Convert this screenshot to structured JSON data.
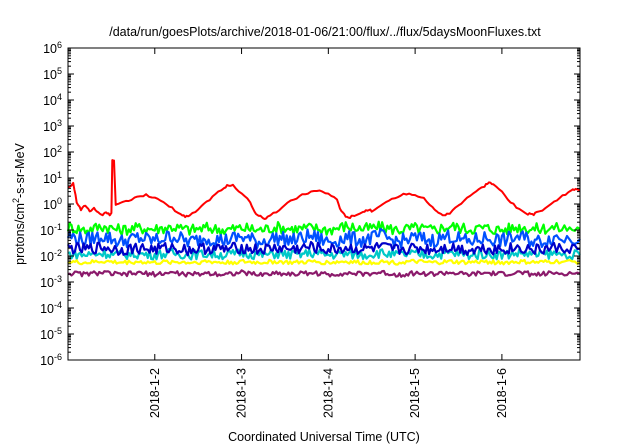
{
  "chart_data": {
    "type": "line",
    "title": "/data/run/goesPlots/archive/2018-01-06/21:00/flux/../flux/5daysMoonFluxes.txt",
    "xlabel": "Coordinated Universal Time (UTC)",
    "ylabel": "protons/cm2-s-sr-MeV",
    "ylabel_parts": {
      "pre": "protons/cm",
      "sup": "2",
      "post": "-s-sr-MeV"
    },
    "yscale": "log",
    "ylim": [
      1e-06,
      1000000.0
    ],
    "xlim": [
      1.0,
      6.9
    ],
    "x_ticks": [
      {
        "x": 2,
        "label": "2018-1-2"
      },
      {
        "x": 3,
        "label": "2018-1-3"
      },
      {
        "x": 4,
        "label": "2018-1-4"
      },
      {
        "x": 5,
        "label": "2018-1-5"
      },
      {
        "x": 6,
        "label": "2018-1-6"
      }
    ],
    "y_ticks": [
      {
        "exp": -6,
        "base": "10",
        "sup": "-6"
      },
      {
        "exp": -5,
        "base": "10",
        "sup": "-5"
      },
      {
        "exp": -4,
        "base": "10",
        "sup": "-4"
      },
      {
        "exp": -3,
        "base": "10",
        "sup": "-3"
      },
      {
        "exp": -2,
        "base": "10",
        "sup": "-2"
      },
      {
        "exp": -1,
        "base": "10",
        "sup": "-1"
      },
      {
        "exp": 0,
        "base": "10",
        "sup": "0"
      },
      {
        "exp": 1,
        "base": "10",
        "sup": "1"
      },
      {
        "exp": 2,
        "base": "10",
        "sup": "2"
      },
      {
        "exp": 3,
        "base": "10",
        "sup": "3"
      },
      {
        "exp": 4,
        "base": "10",
        "sup": "4"
      },
      {
        "exp": 5,
        "base": "10",
        "sup": "5"
      },
      {
        "exp": 6,
        "base": "10",
        "sup": "6"
      }
    ],
    "grid": false,
    "legend": "none",
    "series": [
      {
        "color": "#ff0000",
        "points": [
          [
            1.0,
            4.0
          ],
          [
            1.06,
            6.5
          ],
          [
            1.1,
            1.2
          ],
          [
            1.15,
            0.6
          ],
          [
            1.2,
            0.9
          ],
          [
            1.25,
            0.55
          ],
          [
            1.3,
            0.7
          ],
          [
            1.35,
            0.45
          ],
          [
            1.4,
            0.4
          ],
          [
            1.44,
            0.45
          ],
          [
            1.48,
            0.38
          ],
          [
            1.5,
            0.42
          ],
          [
            1.51,
            45
          ],
          [
            1.53,
            45
          ],
          [
            1.55,
            0.9
          ],
          [
            1.6,
            1.0
          ],
          [
            1.7,
            1.4
          ],
          [
            1.8,
            2.0
          ],
          [
            1.9,
            2.2
          ],
          [
            2.0,
            1.8
          ],
          [
            2.1,
            1.1
          ],
          [
            2.2,
            0.7
          ],
          [
            2.3,
            0.4
          ],
          [
            2.35,
            0.32
          ],
          [
            2.4,
            0.35
          ],
          [
            2.5,
            0.6
          ],
          [
            2.6,
            1.2
          ],
          [
            2.7,
            2.5
          ],
          [
            2.8,
            4.0
          ],
          [
            2.85,
            5.5
          ],
          [
            2.9,
            5.0
          ],
          [
            3.0,
            2.5
          ],
          [
            3.1,
            1.2
          ],
          [
            3.15,
            0.5
          ],
          [
            3.2,
            0.35
          ],
          [
            3.25,
            0.28
          ],
          [
            3.3,
            0.3
          ],
          [
            3.4,
            0.5
          ],
          [
            3.5,
            0.9
          ],
          [
            3.6,
            1.5
          ],
          [
            3.7,
            2.2
          ],
          [
            3.8,
            3.0
          ],
          [
            3.9,
            3.2
          ],
          [
            4.0,
            2.5
          ],
          [
            4.1,
            1.5
          ],
          [
            4.15,
            0.5
          ],
          [
            4.2,
            0.35
          ],
          [
            4.25,
            0.3
          ],
          [
            4.3,
            0.38
          ],
          [
            4.4,
            0.5
          ],
          [
            4.45,
            0.6
          ],
          [
            4.5,
            0.55
          ],
          [
            4.6,
            0.8
          ],
          [
            4.7,
            1.3
          ],
          [
            4.8,
            2.0
          ],
          [
            4.9,
            2.5
          ],
          [
            5.0,
            2.3
          ],
          [
            5.1,
            1.6
          ],
          [
            5.2,
            0.8
          ],
          [
            5.25,
            0.5
          ],
          [
            5.3,
            0.4
          ],
          [
            5.35,
            0.38
          ],
          [
            5.4,
            0.45
          ],
          [
            5.5,
            0.9
          ],
          [
            5.6,
            1.8
          ],
          [
            5.7,
            3.0
          ],
          [
            5.8,
            5.0
          ],
          [
            5.85,
            7.0
          ],
          [
            5.9,
            5.5
          ],
          [
            6.0,
            3.0
          ],
          [
            6.1,
            1.2
          ],
          [
            6.2,
            0.6
          ],
          [
            6.3,
            0.42
          ],
          [
            6.35,
            0.38
          ],
          [
            6.4,
            0.45
          ],
          [
            6.5,
            0.7
          ],
          [
            6.6,
            1.2
          ],
          [
            6.7,
            2.0
          ],
          [
            6.8,
            3.2
          ],
          [
            6.85,
            4.0
          ],
          [
            6.9,
            3.5
          ]
        ]
      },
      {
        "color": "#00ff00",
        "points": [
          [
            1.0,
            0.13
          ],
          [
            1.2,
            0.1
          ],
          [
            1.4,
            0.14
          ],
          [
            1.6,
            0.1
          ],
          [
            1.8,
            0.12
          ],
          [
            2.0,
            0.11
          ],
          [
            2.2,
            0.13
          ],
          [
            2.4,
            0.1
          ],
          [
            2.6,
            0.12
          ],
          [
            2.8,
            0.1
          ],
          [
            3.0,
            0.12
          ],
          [
            3.2,
            0.1
          ],
          [
            3.4,
            0.13
          ],
          [
            3.6,
            0.11
          ],
          [
            3.8,
            0.12
          ],
          [
            4.0,
            0.1
          ],
          [
            4.2,
            0.14
          ],
          [
            4.4,
            0.11
          ],
          [
            4.6,
            0.13
          ],
          [
            4.8,
            0.1
          ],
          [
            5.0,
            0.12
          ],
          [
            5.2,
            0.1
          ],
          [
            5.4,
            0.14
          ],
          [
            5.6,
            0.11
          ],
          [
            5.8,
            0.12
          ],
          [
            6.0,
            0.1
          ],
          [
            6.2,
            0.13
          ],
          [
            6.4,
            0.11
          ],
          [
            6.6,
            0.12
          ],
          [
            6.9,
            0.11
          ]
        ]
      },
      {
        "color": "#0050ff",
        "points": [
          [
            1.0,
            0.06
          ],
          [
            1.2,
            0.04
          ],
          [
            1.4,
            0.06
          ],
          [
            1.6,
            0.035
          ],
          [
            1.8,
            0.05
          ],
          [
            2.0,
            0.04
          ],
          [
            2.2,
            0.06
          ],
          [
            2.4,
            0.035
          ],
          [
            2.6,
            0.05
          ],
          [
            2.8,
            0.04
          ],
          [
            3.0,
            0.055
          ],
          [
            3.2,
            0.035
          ],
          [
            3.4,
            0.05
          ],
          [
            3.6,
            0.04
          ],
          [
            3.8,
            0.06
          ],
          [
            4.0,
            0.035
          ],
          [
            4.2,
            0.05
          ],
          [
            4.4,
            0.04
          ],
          [
            4.6,
            0.06
          ],
          [
            4.8,
            0.035
          ],
          [
            5.0,
            0.05
          ],
          [
            5.2,
            0.04
          ],
          [
            5.4,
            0.06
          ],
          [
            5.6,
            0.035
          ],
          [
            5.8,
            0.05
          ],
          [
            6.0,
            0.04
          ],
          [
            6.2,
            0.055
          ],
          [
            6.4,
            0.035
          ],
          [
            6.6,
            0.05
          ],
          [
            6.9,
            0.045
          ]
        ]
      },
      {
        "color": "#00c8c8",
        "points": [
          [
            1.0,
            0.012
          ],
          [
            1.2,
            0.011
          ],
          [
            1.4,
            0.013
          ],
          [
            1.6,
            0.011
          ],
          [
            1.8,
            0.012
          ],
          [
            2.0,
            0.011
          ],
          [
            2.2,
            0.013
          ],
          [
            2.4,
            0.011
          ],
          [
            2.6,
            0.012
          ],
          [
            2.8,
            0.011
          ],
          [
            3.0,
            0.013
          ],
          [
            3.2,
            0.011
          ],
          [
            3.4,
            0.012
          ],
          [
            3.6,
            0.011
          ],
          [
            3.8,
            0.013
          ],
          [
            4.0,
            0.011
          ],
          [
            4.2,
            0.012
          ],
          [
            4.4,
            0.011
          ],
          [
            4.6,
            0.013
          ],
          [
            4.8,
            0.011
          ],
          [
            5.0,
            0.012
          ],
          [
            5.2,
            0.011
          ],
          [
            5.4,
            0.013
          ],
          [
            5.6,
            0.011
          ],
          [
            5.8,
            0.012
          ],
          [
            6.0,
            0.011
          ],
          [
            6.2,
            0.013
          ],
          [
            6.4,
            0.011
          ],
          [
            6.6,
            0.012
          ],
          [
            6.9,
            0.011
          ]
        ]
      },
      {
        "color": "#0000c8",
        "points": [
          [
            1.0,
            0.02
          ],
          [
            1.2,
            0.018
          ],
          [
            1.4,
            0.022
          ],
          [
            1.6,
            0.017
          ],
          [
            1.8,
            0.02
          ],
          [
            2.0,
            0.018
          ],
          [
            2.2,
            0.021
          ],
          [
            2.4,
            0.017
          ],
          [
            2.6,
            0.02
          ],
          [
            2.8,
            0.018
          ],
          [
            3.0,
            0.021
          ],
          [
            3.2,
            0.017
          ],
          [
            3.4,
            0.02
          ],
          [
            3.6,
            0.018
          ],
          [
            3.8,
            0.022
          ],
          [
            4.0,
            0.017
          ],
          [
            4.2,
            0.02
          ],
          [
            4.4,
            0.018
          ],
          [
            4.6,
            0.021
          ],
          [
            4.8,
            0.017
          ],
          [
            5.0,
            0.02
          ],
          [
            5.2,
            0.018
          ],
          [
            5.4,
            0.022
          ],
          [
            5.6,
            0.017
          ],
          [
            5.8,
            0.02
          ],
          [
            6.0,
            0.018
          ],
          [
            6.2,
            0.021
          ],
          [
            6.4,
            0.017
          ],
          [
            6.6,
            0.02
          ],
          [
            6.9,
            0.019
          ]
        ]
      },
      {
        "color": "#ffff00",
        "points": [
          [
            1.0,
            0.006
          ],
          [
            1.2,
            0.0055
          ],
          [
            1.4,
            0.0062
          ],
          [
            1.6,
            0.0056
          ],
          [
            1.8,
            0.006
          ],
          [
            2.0,
            0.0055
          ],
          [
            2.2,
            0.006
          ],
          [
            2.4,
            0.0056
          ],
          [
            2.6,
            0.0061
          ],
          [
            2.8,
            0.0055
          ],
          [
            3.0,
            0.006
          ],
          [
            3.2,
            0.0056
          ],
          [
            3.4,
            0.0061
          ],
          [
            3.6,
            0.0055
          ],
          [
            3.8,
            0.006
          ],
          [
            4.0,
            0.0056
          ],
          [
            4.2,
            0.0061
          ],
          [
            4.4,
            0.0055
          ],
          [
            4.6,
            0.006
          ],
          [
            4.8,
            0.0056
          ],
          [
            5.0,
            0.0061
          ],
          [
            5.2,
            0.0055
          ],
          [
            5.4,
            0.006
          ],
          [
            5.6,
            0.0056
          ],
          [
            5.8,
            0.0061
          ],
          [
            6.0,
            0.0055
          ],
          [
            6.2,
            0.006
          ],
          [
            6.4,
            0.0056
          ],
          [
            6.6,
            0.0061
          ],
          [
            6.9,
            0.0058
          ]
        ]
      },
      {
        "color": "#8b1a6b",
        "points": [
          [
            1.0,
            0.0022
          ],
          [
            1.2,
            0.002
          ],
          [
            1.4,
            0.0023
          ],
          [
            1.6,
            0.0019
          ],
          [
            1.8,
            0.0022
          ],
          [
            2.0,
            0.002
          ],
          [
            2.2,
            0.0023
          ],
          [
            2.4,
            0.0019
          ],
          [
            2.6,
            0.0022
          ],
          [
            2.8,
            0.002
          ],
          [
            3.0,
            0.0023
          ],
          [
            3.2,
            0.0019
          ],
          [
            3.4,
            0.0022
          ],
          [
            3.6,
            0.002
          ],
          [
            3.8,
            0.0023
          ],
          [
            4.0,
            0.0019
          ],
          [
            4.2,
            0.0022
          ],
          [
            4.4,
            0.002
          ],
          [
            4.6,
            0.0023
          ],
          [
            4.8,
            0.0019
          ],
          [
            5.0,
            0.0022
          ],
          [
            5.2,
            0.002
          ],
          [
            5.4,
            0.0023
          ],
          [
            5.6,
            0.0019
          ],
          [
            5.8,
            0.0022
          ],
          [
            6.0,
            0.002
          ],
          [
            6.2,
            0.0023
          ],
          [
            6.4,
            0.0019
          ],
          [
            6.6,
            0.0022
          ],
          [
            6.9,
            0.0021
          ]
        ]
      }
    ]
  }
}
